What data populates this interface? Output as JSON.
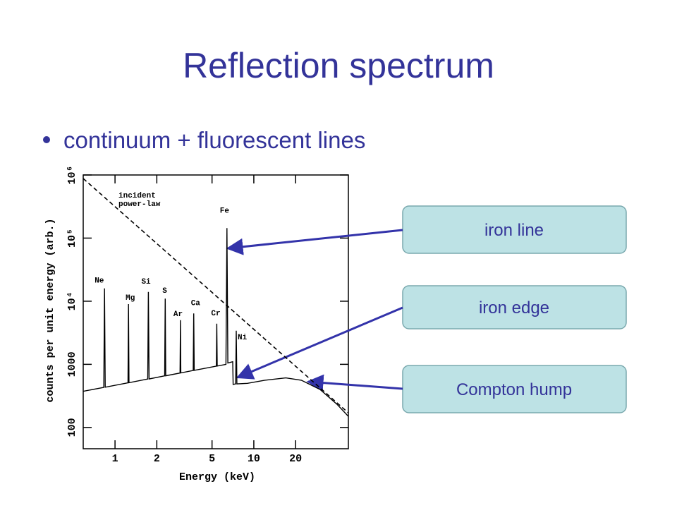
{
  "slide": {
    "title": "Reflection spectrum",
    "bullet": "continuum + fluorescent lines",
    "callouts": [
      "iron line",
      "iron edge",
      "Compton hump"
    ]
  },
  "chart_data": {
    "type": "line",
    "x_label": "Energy (keV)",
    "y_label": "counts per unit energy (arb.)",
    "xscale": "log",
    "yscale": "log",
    "xlim": [
      0.59,
      48
    ],
    "ylim": [
      46,
      1000000
    ],
    "xticks": [
      1,
      2,
      5,
      10,
      20
    ],
    "yticks": [
      100,
      1000,
      {
        "value": 10000,
        "label": "10⁴"
      },
      {
        "value": 100000,
        "label": "10⁵"
      },
      {
        "value": 1000000,
        "label": "10⁶"
      }
    ],
    "power_law_label": [
      "incident",
      "power-law"
    ],
    "line_labels": [
      "Ne",
      "Mg",
      "Si",
      "S",
      "Ar",
      "Ca",
      "Cr",
      "Fe",
      "Ni"
    ],
    "series": [
      {
        "color": "#000000",
        "dashed": false,
        "x": [
          0.59,
          0.83,
          0.84,
          0.85,
          1.24,
          1.25,
          1.26,
          1.72,
          1.74,
          1.76,
          2.28,
          2.3,
          2.32,
          2.94,
          2.96,
          2.98,
          3.66,
          3.69,
          3.72,
          5.37,
          5.41,
          5.45,
          6.3,
          6.4,
          6.5,
          7.05,
          7.1,
          7.4,
          7.47,
          7.55,
          9,
          12,
          17,
          22,
          30,
          40,
          48
        ],
        "values": [
          374,
          432,
          16000,
          434,
          510,
          9000,
          512,
          585,
          14000,
          587,
          657,
          11000,
          659,
          729,
          5000,
          731,
          798,
          6400,
          802,
          936,
          4400,
          940,
          1000,
          144000,
          1050,
          1100,
          480,
          490,
          3400,
          490,
          500,
          560,
          610,
          560,
          400,
          230,
          150
        ]
      },
      {
        "color": "#000000",
        "dashed": true,
        "x": [
          0.59,
          48
        ],
        "values": [
          880000,
          170
        ]
      }
    ]
  }
}
